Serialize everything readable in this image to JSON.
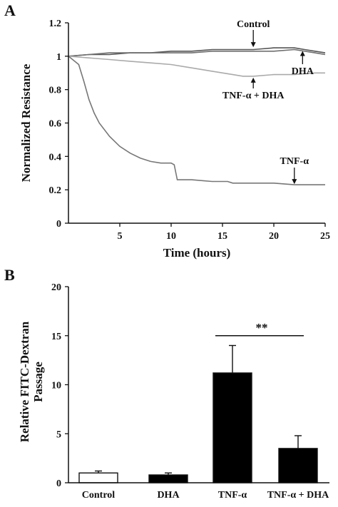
{
  "chart_data": [
    {
      "panel": "A",
      "type": "line",
      "xlabel": "Time (hours)",
      "ylabel": "Normalized Resistance",
      "xlim": [
        0,
        25
      ],
      "ylim": [
        0,
        1.2
      ],
      "xticks": [
        5,
        10,
        15,
        20,
        25
      ],
      "yticks": [
        0,
        0.2,
        0.4,
        0.6,
        0.8,
        1,
        1.2
      ],
      "ytick_labels": [
        "0",
        "0.2",
        "0.4",
        "0.6",
        "0.8",
        "1",
        "1.2"
      ],
      "legend": "none",
      "series": [
        {
          "name": "Control",
          "color": "#555555",
          "x": [
            0,
            2,
            4,
            6,
            8,
            10,
            12,
            14,
            16,
            18,
            20,
            22,
            23,
            24,
            25
          ],
          "y": [
            1.0,
            1.01,
            1.01,
            1.02,
            1.02,
            1.03,
            1.03,
            1.04,
            1.04,
            1.04,
            1.05,
            1.05,
            1.04,
            1.03,
            1.02
          ]
        },
        {
          "name": "DHA",
          "color": "#6e6e6e",
          "x": [
            0,
            2,
            4,
            6,
            8,
            10,
            12,
            14,
            16,
            18,
            20,
            22,
            24,
            25
          ],
          "y": [
            1.0,
            1.01,
            1.02,
            1.02,
            1.02,
            1.02,
            1.02,
            1.03,
            1.03,
            1.03,
            1.03,
            1.04,
            1.02,
            1.01
          ]
        },
        {
          "name": "TNF-α + DHA",
          "color": "#aaaaaa",
          "x": [
            0,
            2,
            4,
            6,
            8,
            10,
            12,
            14,
            16,
            17,
            18,
            20,
            22,
            24,
            25
          ],
          "y": [
            1.0,
            0.99,
            0.98,
            0.97,
            0.96,
            0.95,
            0.93,
            0.91,
            0.89,
            0.88,
            0.88,
            0.89,
            0.89,
            0.9,
            0.9
          ]
        },
        {
          "name": "TNF-α",
          "color": "#777777",
          "x": [
            0,
            1,
            1.5,
            2,
            2.5,
            3,
            4,
            5,
            6,
            7,
            8,
            9,
            10,
            10.3,
            10.6,
            12,
            14,
            15.5,
            16,
            18,
            20,
            22,
            24,
            25
          ],
          "y": [
            1.0,
            0.95,
            0.85,
            0.74,
            0.66,
            0.6,
            0.52,
            0.46,
            0.42,
            0.39,
            0.37,
            0.36,
            0.36,
            0.35,
            0.26,
            0.26,
            0.25,
            0.25,
            0.24,
            0.24,
            0.24,
            0.23,
            0.23,
            0.23
          ]
        }
      ],
      "annotations": [
        {
          "text": "Control",
          "x": 18,
          "y": 1.05
        },
        {
          "text": "DHA",
          "x": 22.8,
          "y": 1.04
        },
        {
          "text": "TNF-α + DHA",
          "x": 18,
          "y": 0.88
        },
        {
          "text": "TNF-α",
          "x": 22,
          "y": 0.23
        }
      ]
    },
    {
      "panel": "B",
      "type": "bar",
      "ylabel": "Relative FITC-Dextran\nPassage",
      "ylim": [
        0,
        20
      ],
      "yticks": [
        0,
        5,
        10,
        15,
        20
      ],
      "categories": [
        "Control",
        "DHA",
        "TNF-α",
        "TNF-α + DHA"
      ],
      "values": [
        1.0,
        0.8,
        11.2,
        3.5
      ],
      "errors": [
        0.2,
        0.2,
        2.8,
        1.3
      ],
      "colors": [
        "#ffffff",
        "#000000",
        "#000000",
        "#000000"
      ],
      "significance": {
        "text": "**",
        "from": "TNF-α",
        "to": "TNF-α + DHA",
        "y": 15
      }
    }
  ]
}
